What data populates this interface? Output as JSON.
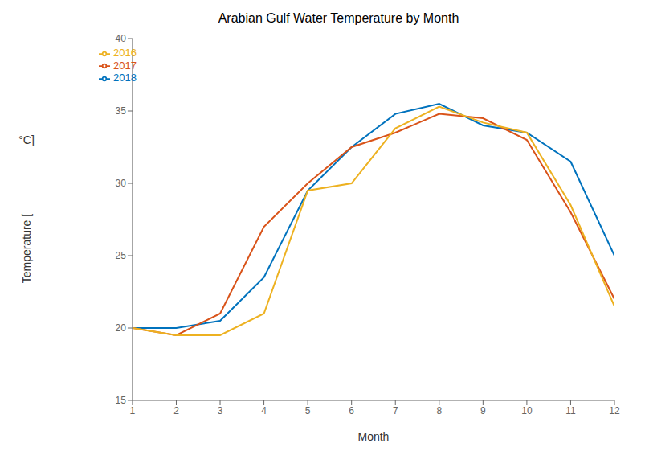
{
  "chart_data": {
    "type": "line",
    "title": "Arabian Gulf Water Temperature by Month",
    "xlabel": "Month",
    "ylabel": [
      "Temperature [",
      "°C]"
    ],
    "x": [
      1,
      2,
      3,
      4,
      5,
      6,
      7,
      8,
      9,
      10,
      11,
      12
    ],
    "series": [
      {
        "name": "2018",
        "color": "#0072BD",
        "values": [
          20.0,
          20.0,
          20.5,
          23.5,
          29.5,
          32.5,
          34.8,
          35.5,
          34.0,
          33.5,
          31.5,
          25.0
        ]
      },
      {
        "name": "2017",
        "color": "#D95319",
        "values": [
          20.0,
          19.5,
          21.0,
          27.0,
          30.0,
          32.5,
          33.5,
          34.8,
          34.5,
          33.0,
          28.0,
          22.0
        ]
      },
      {
        "name": "2016",
        "color": "#EDB120",
        "values": [
          20.0,
          19.5,
          19.5,
          21.0,
          29.5,
          30.0,
          33.8,
          35.3,
          34.2,
          33.5,
          28.5,
          21.5
        ]
      }
    ],
    "xlim": [
      1,
      12
    ],
    "ylim": [
      15,
      40
    ],
    "xticks": [
      1,
      2,
      3,
      4,
      5,
      6,
      7,
      8,
      9,
      10,
      11,
      12
    ],
    "yticks": [
      15,
      20,
      25,
      30,
      35,
      40
    ],
    "legend": "upper left",
    "grid": false
  }
}
